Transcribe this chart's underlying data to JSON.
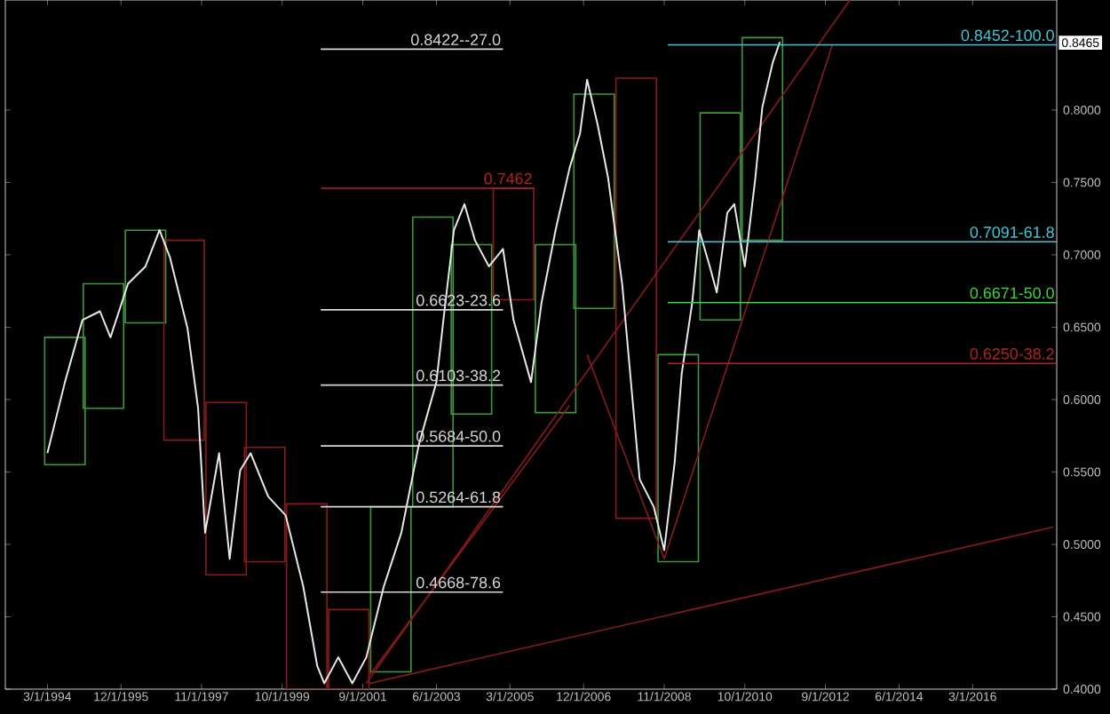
{
  "chart_data": {
    "type": "line",
    "xlim": [
      "1993-03",
      "2018-03"
    ],
    "ylim": [
      0.4,
      0.876
    ],
    "xticks": [
      {
        "value": "1994-03-01",
        "label": "3/1/1994"
      },
      {
        "value": "1995-12-01",
        "label": "12/1/1995"
      },
      {
        "value": "1997-11-01",
        "label": "11/1/1997"
      },
      {
        "value": "1999-10-01",
        "label": "10/1/1999"
      },
      {
        "value": "2001-09-01",
        "label": "9/1/2001"
      },
      {
        "value": "2003-06-01",
        "label": "6/1/2003"
      },
      {
        "value": "2005-03-01",
        "label": "3/1/2005"
      },
      {
        "value": "2006-12-01",
        "label": "12/1/2006"
      },
      {
        "value": "2008-11-01",
        "label": "11/1/2008"
      },
      {
        "value": "2010-10-01",
        "label": "10/1/2010"
      },
      {
        "value": "2012-09-01",
        "label": "9/1/2012"
      },
      {
        "value": "2014-06-01",
        "label": "6/1/2014"
      },
      {
        "value": "2016-03-01",
        "label": "3/1/2016"
      }
    ],
    "yticks": [
      {
        "value": 0.4,
        "label": "0.4000"
      },
      {
        "value": 0.45,
        "label": "0.4500"
      },
      {
        "value": 0.5,
        "label": "0.5000"
      },
      {
        "value": 0.55,
        "label": "0.5500"
      },
      {
        "value": 0.6,
        "label": "0.6000"
      },
      {
        "value": 0.65,
        "label": "0.6500"
      },
      {
        "value": 0.7,
        "label": "0.7000"
      },
      {
        "value": 0.75,
        "label": "0.7500"
      },
      {
        "value": 0.8,
        "label": "0.8000"
      }
    ],
    "annotations": [
      {
        "text": "0.8465",
        "x": "2018-03",
        "y": 0.8465
      }
    ],
    "series": [
      {
        "type": "bar",
        "color": "#3c9a3c",
        "x": [
          "1994-08",
          "1995-07",
          "1996-07",
          "2002-05",
          "2003-05",
          "2004-04",
          "2006-04",
          "2007-03",
          "2009-03",
          "2010-03",
          "2011-03"
        ],
        "base": [
          0.555,
          0.594,
          0.653,
          0.412,
          0.526,
          0.59,
          0.591,
          0.663,
          0.488,
          0.655,
          0.71
        ],
        "values": [
          0.088,
          0.086,
          0.064,
          0.114,
          0.2,
          0.117,
          0.116,
          0.148,
          0.143,
          0.143,
          0.14
        ]
      },
      {
        "type": "bar",
        "color": "#8b1a1a",
        "x": [
          "1997-06",
          "1998-06",
          "1999-05",
          "2000-05",
          "2001-05",
          "2005-04",
          "2008-03"
        ],
        "base": [
          0.572,
          0.479,
          0.488,
          0.4,
          0.4,
          0.669,
          0.518
        ],
        "values": [
          0.138,
          0.119,
          0.079,
          0.128,
          0.055,
          0.077,
          0.304
        ]
      },
      {
        "color": "#8b1a1a",
        "x": [
          "2001-11",
          "2018-02"
        ],
        "values": [
          0.404,
          0.512
        ]
      },
      {
        "color": "#8b1a1a",
        "x": [
          "2001-10",
          "2013-04"
        ],
        "values": [
          0.404,
          0.876
        ]
      },
      {
        "color": "#8b1a1a",
        "x": [
          "2001-11",
          "2006-08"
        ],
        "values": [
          0.41,
          0.596
        ]
      },
      {
        "color": "#8b1a1a",
        "x": [
          "2007-01",
          "2008-11",
          "2012-11"
        ],
        "values": [
          0.631,
          0.49,
          0.845
        ]
      },
      {
        "color": "#e8e8e8",
        "x": [
          "1994-03",
          "1994-08",
          "1995-01",
          "1995-06",
          "1995-09",
          "1996-02",
          "1996-07",
          "1996-11",
          "1997-02",
          "1997-07",
          "1997-10",
          "1997-12",
          "1998-04",
          "1998-07",
          "1998-10",
          "1999-01",
          "1999-06",
          "1999-11",
          "2000-04",
          "2000-08",
          "2000-10",
          "2001-02",
          "2001-06",
          "2001-10",
          "2002-03",
          "2002-08",
          "2003-01",
          "2003-06",
          "2003-08",
          "2003-11",
          "2004-02",
          "2004-05",
          "2004-09",
          "2005-01",
          "2005-04",
          "2005-09",
          "2005-12",
          "2006-04",
          "2006-08",
          "2006-11",
          "2007-01",
          "2007-04",
          "2007-07",
          "2007-11",
          "2008-04",
          "2008-08",
          "2008-11",
          "2009-02",
          "2009-04",
          "2009-07",
          "2009-09",
          "2009-12",
          "2010-02",
          "2010-05",
          "2010-07",
          "2010-10",
          "2011-01",
          "2011-03",
          "2011-06",
          "2011-08"
        ],
        "values": [
          0.563,
          0.612,
          0.655,
          0.661,
          0.643,
          0.68,
          0.692,
          0.717,
          0.698,
          0.649,
          0.594,
          0.508,
          0.563,
          0.49,
          0.551,
          0.563,
          0.533,
          0.52,
          0.471,
          0.416,
          0.404,
          0.422,
          0.404,
          0.422,
          0.471,
          0.508,
          0.569,
          0.612,
          0.655,
          0.717,
          0.735,
          0.71,
          0.692,
          0.704,
          0.655,
          0.612,
          0.667,
          0.717,
          0.76,
          0.784,
          0.821,
          0.79,
          0.753,
          0.68,
          0.545,
          0.526,
          0.496,
          0.557,
          0.618,
          0.667,
          0.717,
          0.692,
          0.674,
          0.729,
          0.735,
          0.692,
          0.753,
          0.802,
          0.833,
          0.847
        ]
      },
      {
        "name": "0.8422--27.0",
        "color": "#d8d8d8",
        "x": [
          "2000-09",
          "2005-01"
        ],
        "values": [
          0.842,
          0.842
        ]
      },
      {
        "name": "0.7462",
        "color": "#b22222",
        "x": [
          "2000-09",
          "2005-10"
        ],
        "values": [
          0.746,
          0.746
        ]
      },
      {
        "name": "0.6623-23.6",
        "color": "#d8d8d8",
        "x": [
          "2000-09",
          "2005-01"
        ],
        "values": [
          0.662,
          0.662
        ]
      },
      {
        "name": "0.6103-38.2",
        "color": "#d8d8d8",
        "x": [
          "2000-09",
          "2005-01"
        ],
        "values": [
          0.61,
          0.61
        ]
      },
      {
        "name": "0.5684-50.0",
        "color": "#d8d8d8",
        "x": [
          "2000-09",
          "2005-01"
        ],
        "values": [
          0.568,
          0.568
        ]
      },
      {
        "name": "0.5264-61.8",
        "color": "#d8d8d8",
        "x": [
          "2000-09",
          "2005-01"
        ],
        "values": [
          0.526,
          0.526
        ]
      },
      {
        "name": "0.4668-78.6",
        "color": "#d8d8d8",
        "x": [
          "2000-09",
          "2005-01"
        ],
        "values": [
          0.467,
          0.467
        ]
      },
      {
        "name": "0.8452-100.0",
        "color": "#40c8d8",
        "x": [
          "2008-12",
          "2018-03"
        ],
        "values": [
          0.845,
          0.845
        ]
      },
      {
        "name": "0.7091-61.8",
        "color": "#40c8d8",
        "x": [
          "2008-12",
          "2018-03"
        ],
        "values": [
          0.709,
          0.709
        ]
      },
      {
        "name": "0.6671-50.0",
        "color": "#40d040",
        "x": [
          "2008-12",
          "2018-03"
        ],
        "values": [
          0.667,
          0.667
        ]
      },
      {
        "name": "0.6250-38.2",
        "color": "#b22222",
        "x": [
          "2008-12",
          "2018-03"
        ],
        "values": [
          0.625,
          0.625
        ]
      }
    ]
  }
}
